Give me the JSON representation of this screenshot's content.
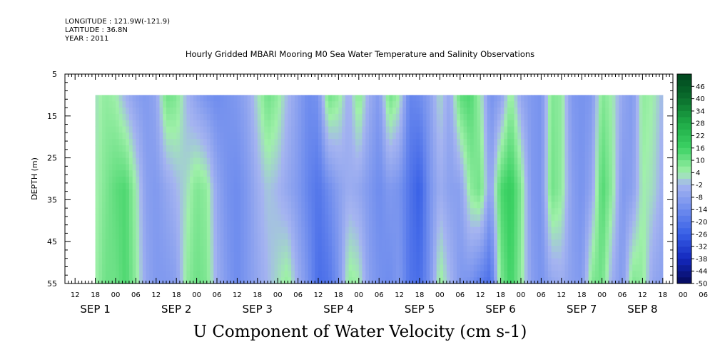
{
  "header": {
    "longitude": "LONGITUDE : 121.9W(-121.9)",
    "latitude": "LATITUDE : 36.8N",
    "year": "YEAR : 2011"
  },
  "chart_data": {
    "type": "heatmap",
    "title": "Hourly Gridded MBARI Mooring M0 Sea Water Temperature and Salinity Observations",
    "xlabel": "U Component of Water Velocity (cm s-1)",
    "ylabel": "DEPTH (m)",
    "y_ticks": [
      "5",
      "15",
      "25",
      "35",
      "45",
      "55"
    ],
    "ylim": [
      55,
      5
    ],
    "x_hour_ticks": [
      "12",
      "18",
      "00",
      "06",
      "12",
      "18",
      "00",
      "06",
      "12",
      "18",
      "00",
      "06",
      "12",
      "18",
      "00",
      "06",
      "12",
      "18",
      "00",
      "06",
      "12",
      "18",
      "00",
      "06",
      "12",
      "18",
      "00",
      "06",
      "12",
      "18",
      "00",
      "06"
    ],
    "x_date_labels": [
      {
        "text": "SEP  1",
        "hour": 18
      },
      {
        "text": "SEP  2",
        "hour": 42
      },
      {
        "text": "SEP  3",
        "hour": 66
      },
      {
        "text": "SEP  4",
        "hour": 90
      },
      {
        "text": "SEP  5",
        "hour": 114
      },
      {
        "text": "SEP  6",
        "hour": 138
      },
      {
        "text": "SEP  7",
        "hour": 162
      },
      {
        "text": "SEP  8",
        "hour": 180
      }
    ],
    "colorbar_labels": [
      "46",
      "40",
      "34",
      "28",
      "22",
      "16",
      "10",
      "4",
      "-2",
      "-8",
      "-14",
      "-20",
      "-26",
      "-32",
      "-38",
      "-44",
      "-50"
    ],
    "colorbar_range": [
      -50,
      52
    ],
    "data_depth_range": [
      10,
      55
    ],
    "pattern_columns": [
      {
        "hour": 18,
        "top": 2,
        "mid": 3,
        "bottom": 4
      },
      {
        "hour": 21,
        "top": 6,
        "mid": 8,
        "bottom": 10
      },
      {
        "hour": 24,
        "top": 4,
        "mid": 12,
        "bottom": 10
      },
      {
        "hour": 27,
        "top": -3,
        "mid": 14,
        "bottom": 14
      },
      {
        "hour": 30,
        "top": -8,
        "mid": 4,
        "bottom": 6
      },
      {
        "hour": 33,
        "top": -10,
        "mid": -8,
        "bottom": -6
      },
      {
        "hour": 36,
        "top": -6,
        "mid": -10,
        "bottom": -10
      },
      {
        "hour": 39,
        "top": 10,
        "mid": -6,
        "bottom": -10
      },
      {
        "hour": 42,
        "top": 8,
        "mid": -2,
        "bottom": -8
      },
      {
        "hour": 45,
        "top": -2,
        "mid": 2,
        "bottom": 6
      },
      {
        "hour": 48,
        "top": -8,
        "mid": 8,
        "bottom": 10
      },
      {
        "hour": 51,
        "top": -12,
        "mid": 6,
        "bottom": 8
      },
      {
        "hour": 54,
        "top": -14,
        "mid": -6,
        "bottom": -4
      },
      {
        "hour": 57,
        "top": -12,
        "mid": -12,
        "bottom": -10
      },
      {
        "hour": 60,
        "top": -10,
        "mid": -14,
        "bottom": -14
      },
      {
        "hour": 63,
        "top": -6,
        "mid": -10,
        "bottom": -10
      },
      {
        "hour": 66,
        "top": 2,
        "mid": -4,
        "bottom": -6
      },
      {
        "hour": 69,
        "top": 10,
        "mid": 0,
        "bottom": -2
      },
      {
        "hour": 72,
        "top": 6,
        "mid": -2,
        "bottom": 2
      },
      {
        "hour": 75,
        "top": -2,
        "mid": -6,
        "bottom": 6
      },
      {
        "hour": 78,
        "top": -8,
        "mid": -10,
        "bottom": -4
      },
      {
        "hour": 81,
        "top": -14,
        "mid": -16,
        "bottom": -12
      },
      {
        "hour": 84,
        "top": -12,
        "mid": -20,
        "bottom": -22
      },
      {
        "hour": 87,
        "top": 10,
        "mid": -14,
        "bottom": -20
      },
      {
        "hour": 90,
        "top": 6,
        "mid": -8,
        "bottom": -12
      },
      {
        "hour": 93,
        "top": -4,
        "mid": -4,
        "bottom": 6
      },
      {
        "hour": 96,
        "top": 8,
        "mid": -6,
        "bottom": 4
      },
      {
        "hour": 99,
        "top": -4,
        "mid": -10,
        "bottom": -8
      },
      {
        "hour": 102,
        "top": -10,
        "mid": -14,
        "bottom": -12
      },
      {
        "hour": 105,
        "top": 10,
        "mid": -10,
        "bottom": -14
      },
      {
        "hour": 108,
        "top": 4,
        "mid": -12,
        "bottom": -10
      },
      {
        "hour": 111,
        "top": -16,
        "mid": -20,
        "bottom": -20
      },
      {
        "hour": 114,
        "top": -14,
        "mid": -26,
        "bottom": -22
      },
      {
        "hour": 117,
        "top": -8,
        "mid": -12,
        "bottom": -12
      },
      {
        "hour": 120,
        "top": 2,
        "mid": -4,
        "bottom": 6
      },
      {
        "hour": 123,
        "top": -6,
        "mid": -8,
        "bottom": -2
      },
      {
        "hour": 126,
        "top": 12,
        "mid": -8,
        "bottom": -10
      },
      {
        "hour": 129,
        "top": 14,
        "mid": 6,
        "bottom": -12
      },
      {
        "hour": 132,
        "top": 4,
        "mid": 10,
        "bottom": -18
      },
      {
        "hour": 135,
        "top": -12,
        "mid": -8,
        "bottom": -22
      },
      {
        "hour": 138,
        "top": -8,
        "mid": 14,
        "bottom": 8
      },
      {
        "hour": 141,
        "top": 6,
        "mid": 18,
        "bottom": 16
      },
      {
        "hour": 144,
        "top": -6,
        "mid": 8,
        "bottom": 6
      },
      {
        "hour": 147,
        "top": -10,
        "mid": -10,
        "bottom": -8
      },
      {
        "hour": 150,
        "top": -12,
        "mid": -12,
        "bottom": -12
      },
      {
        "hour": 153,
        "top": 8,
        "mid": 10,
        "bottom": -6
      },
      {
        "hour": 156,
        "top": 6,
        "mid": 6,
        "bottom": -4
      },
      {
        "hour": 159,
        "top": -10,
        "mid": -8,
        "bottom": -8
      },
      {
        "hour": 162,
        "top": -12,
        "mid": -12,
        "bottom": -10
      },
      {
        "hour": 165,
        "top": -10,
        "mid": -6,
        "bottom": 8
      },
      {
        "hour": 168,
        "top": 8,
        "mid": 14,
        "bottom": 10
      },
      {
        "hour": 171,
        "top": 4,
        "mid": 6,
        "bottom": -4
      },
      {
        "hour": 174,
        "top": -6,
        "mid": -10,
        "bottom": -10
      },
      {
        "hour": 177,
        "top": -10,
        "mid": -8,
        "bottom": 8
      },
      {
        "hour": 180,
        "top": 6,
        "mid": 4,
        "bottom": 6
      },
      {
        "hour": 183,
        "top": 4,
        "mid": 2,
        "bottom": -6
      },
      {
        "hour": 186,
        "top": -2,
        "mid": -4,
        "bottom": -8
      }
    ]
  }
}
